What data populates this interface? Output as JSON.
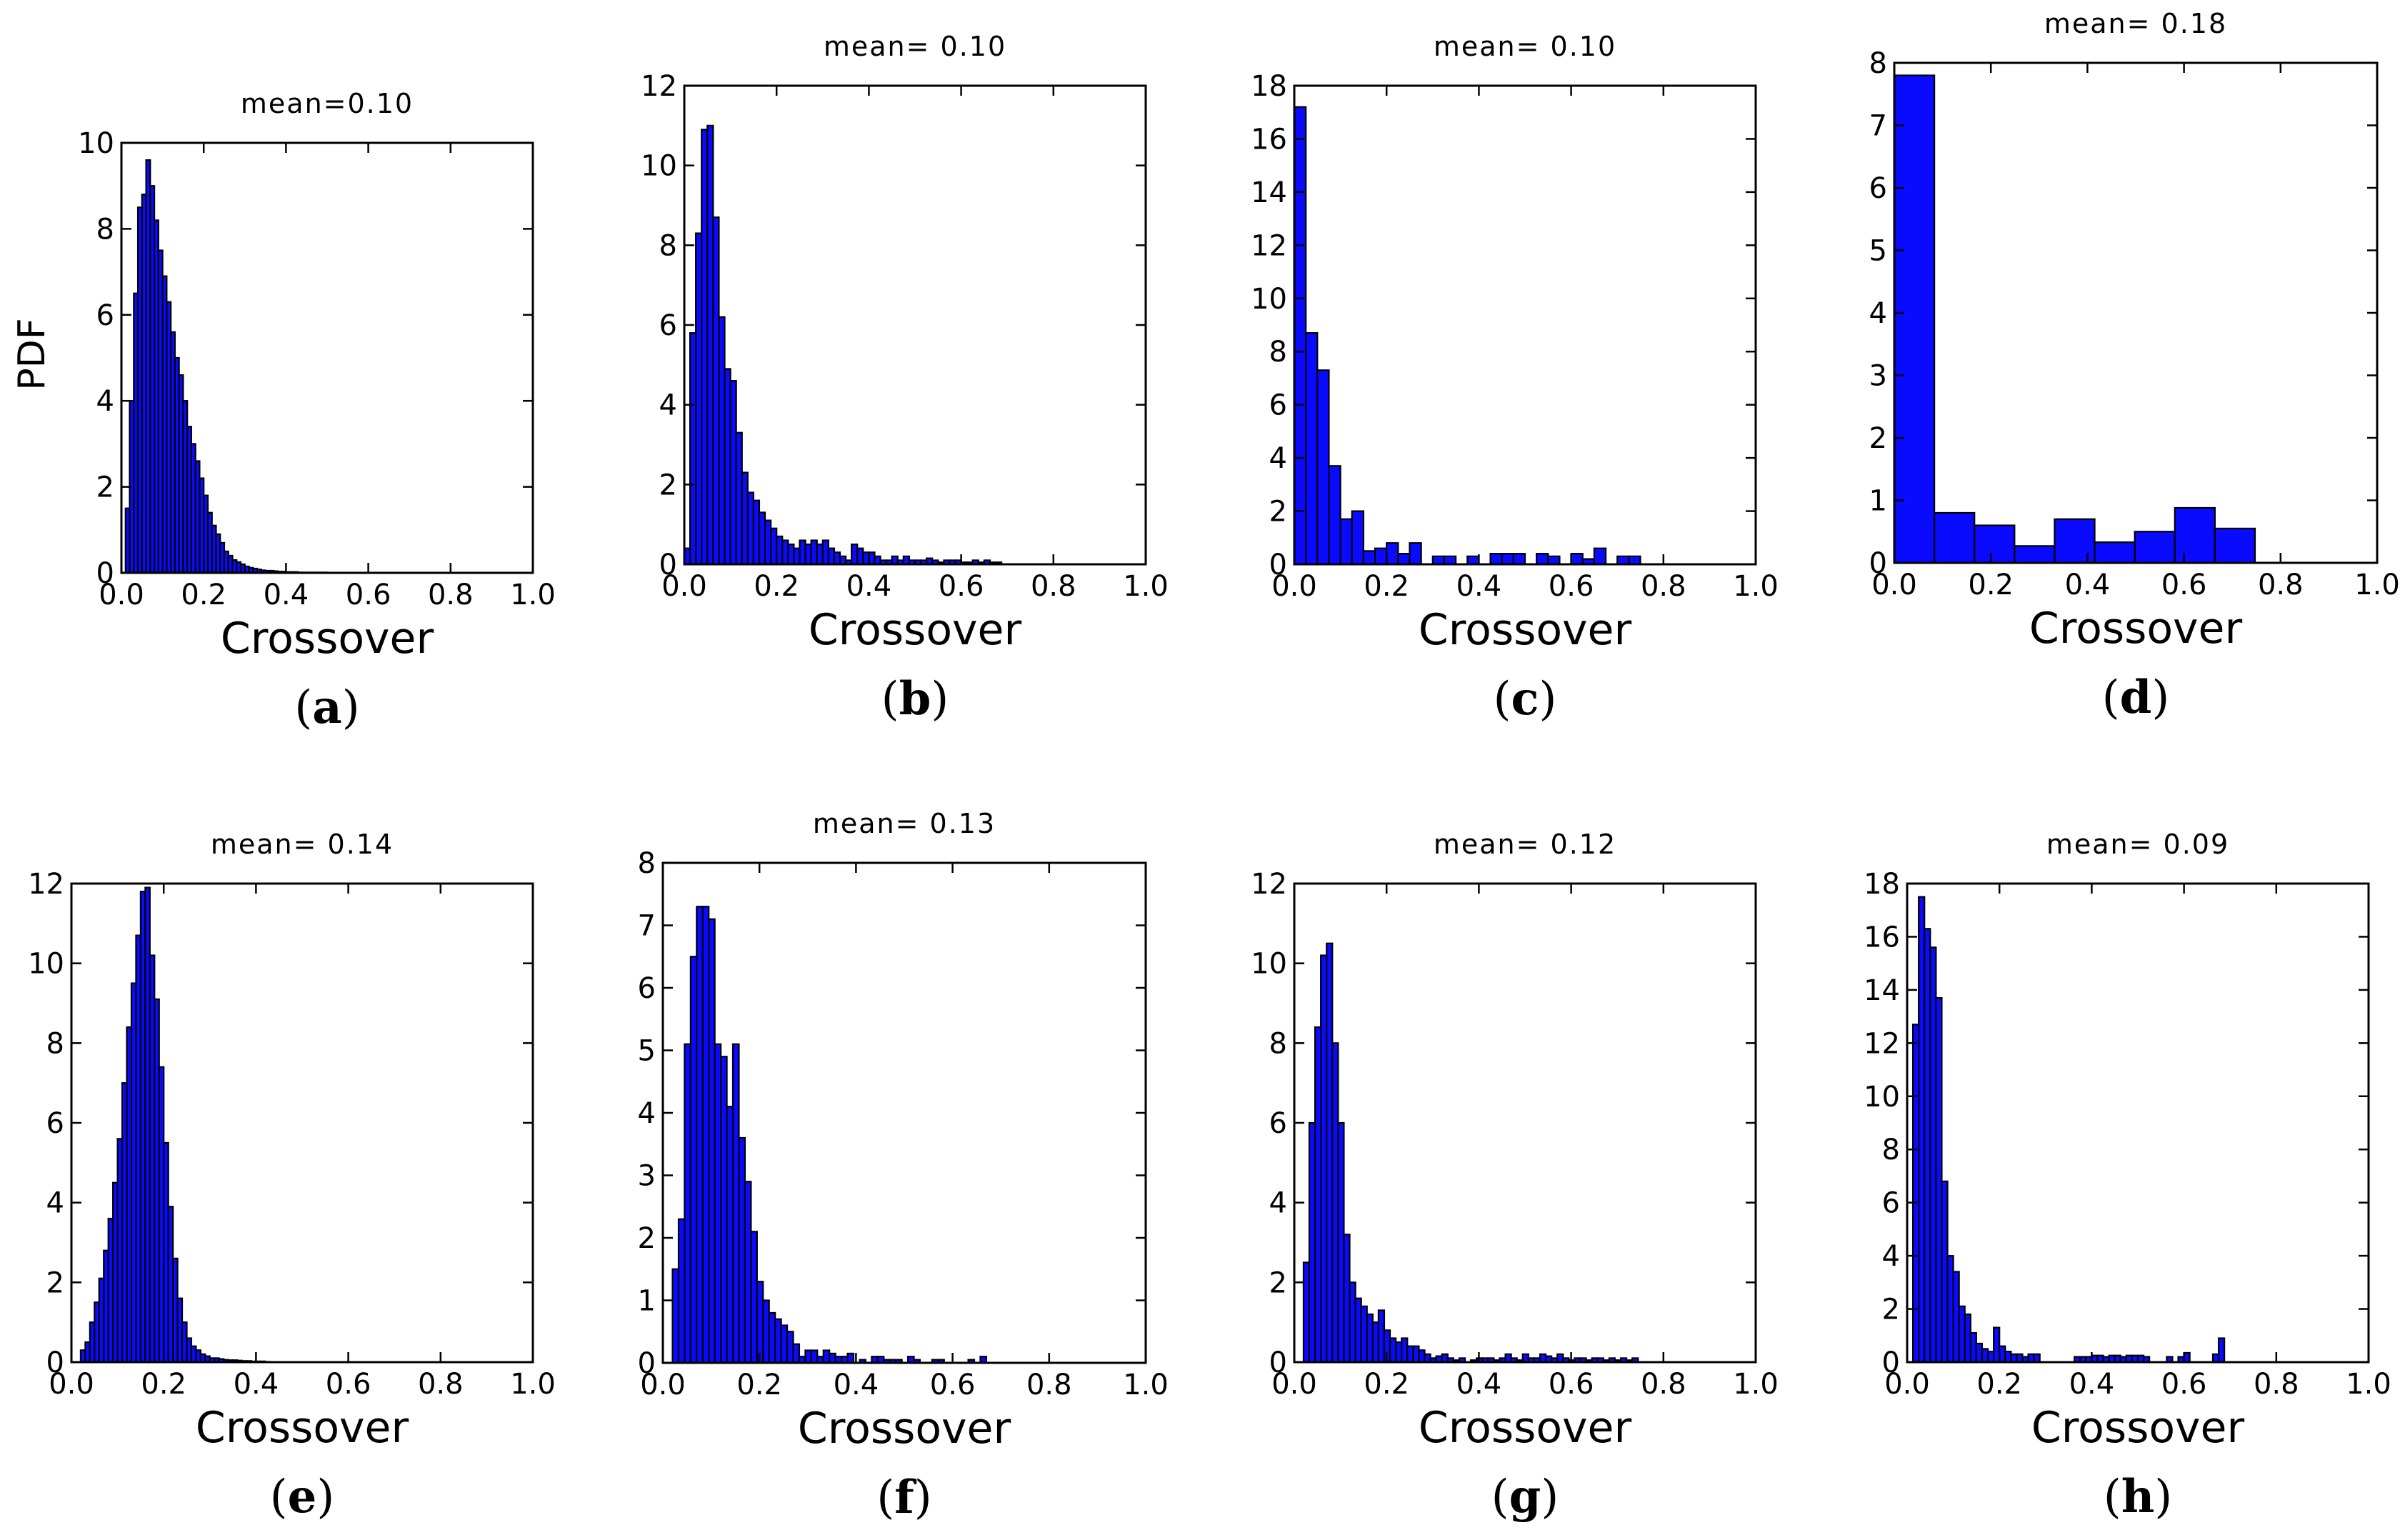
{
  "figure": {
    "ylabel_shared": "PDF"
  },
  "colors": {
    "bar_fill": "#0a0aff",
    "bar_edge": "#000000",
    "axis": "#000000",
    "background": "#ffffff"
  },
  "chart_data": [
    {
      "type": "bar",
      "id": "a",
      "label": "a",
      "title": "mean=0.10",
      "xlabel": "Crossover",
      "ylabel": "PDF",
      "xlim": [
        0.0,
        1.0
      ],
      "ylim": [
        0,
        10
      ],
      "xticks": [
        "0.0",
        "0.2",
        "0.4",
        "0.6",
        "0.8",
        "1.0"
      ],
      "yticks": [
        "0",
        "2",
        "4",
        "6",
        "8",
        "10"
      ],
      "bin_start": 0.0,
      "bin_width": 0.01,
      "values": [
        0,
        1.5,
        4.0,
        6.5,
        8.5,
        8.8,
        9.6,
        9.0,
        8.2,
        7.5,
        6.9,
        6.3,
        5.6,
        5.0,
        4.6,
        4.0,
        3.4,
        3.0,
        2.6,
        2.2,
        1.8,
        1.4,
        1.1,
        0.9,
        0.7,
        0.5,
        0.4,
        0.3,
        0.25,
        0.2,
        0.15,
        0.12,
        0.1,
        0.08,
        0.06,
        0.05,
        0.05,
        0.04,
        0.03,
        0.03,
        0.02,
        0.02,
        0.02,
        0.01,
        0.01,
        0.01,
        0.01,
        0.01,
        0.01,
        0.01
      ]
    },
    {
      "type": "bar",
      "id": "b",
      "label": "b",
      "title": "mean= 0.10",
      "xlabel": "Crossover",
      "ylabel": "",
      "xlim": [
        0.0,
        1.0
      ],
      "ylim": [
        0,
        12
      ],
      "xticks": [
        "0.0",
        "0.2",
        "0.4",
        "0.6",
        "0.8",
        "1.0"
      ],
      "yticks": [
        "0",
        "2",
        "4",
        "6",
        "8",
        "10",
        "12"
      ],
      "bin_start": 0.0,
      "bin_width": 0.0125,
      "values": [
        0.4,
        5.8,
        8.3,
        10.9,
        11.0,
        8.7,
        6.2,
        4.9,
        4.6,
        3.3,
        2.3,
        1.8,
        1.6,
        1.3,
        1.1,
        0.9,
        0.7,
        0.6,
        0.5,
        0.4,
        0.6,
        0.5,
        0.6,
        0.5,
        0.6,
        0.4,
        0.3,
        0.2,
        0.1,
        0.5,
        0.4,
        0.3,
        0.3,
        0.2,
        0.1,
        0.1,
        0.2,
        0.1,
        0.2,
        0.1,
        0.1,
        0.1,
        0.15,
        0.1,
        0.05,
        0.1,
        0.1,
        0.1,
        0.05,
        0.05,
        0.1,
        0.05,
        0.1,
        0.05,
        0.05
      ]
    },
    {
      "type": "bar",
      "id": "c",
      "label": "c",
      "title": "mean= 0.10",
      "xlabel": "Crossover",
      "ylabel": "",
      "xlim": [
        0.0,
        1.0
      ],
      "ylim": [
        0,
        18
      ],
      "xticks": [
        "0.0",
        "0.2",
        "0.4",
        "0.6",
        "0.8",
        "1.0"
      ],
      "yticks": [
        "0",
        "2",
        "4",
        "6",
        "8",
        "10",
        "12",
        "14",
        "16",
        "18"
      ],
      "bin_start": 0.0,
      "bin_width": 0.025,
      "values": [
        17.2,
        8.7,
        7.3,
        3.7,
        1.7,
        2.0,
        0.5,
        0.6,
        0.8,
        0.4,
        0.8,
        0,
        0.3,
        0.3,
        0,
        0.3,
        0,
        0.4,
        0.4,
        0.4,
        0,
        0.4,
        0.3,
        0,
        0.4,
        0.2,
        0.6,
        0,
        0.3,
        0.3
      ]
    },
    {
      "type": "bar",
      "id": "d",
      "label": "d",
      "title": "mean= 0.18",
      "xlabel": "Crossover",
      "ylabel": "",
      "xlim": [
        0.0,
        1.0
      ],
      "ylim": [
        0,
        8
      ],
      "xticks": [
        "0.0",
        "0.2",
        "0.4",
        "0.6",
        "0.8",
        "1.0"
      ],
      "yticks": [
        "0",
        "1",
        "2",
        "3",
        "4",
        "5",
        "6",
        "7",
        "8"
      ],
      "bin_start": 0.0,
      "bin_width": 0.083,
      "values": [
        7.8,
        0.8,
        0.6,
        0.27,
        0.7,
        0.33,
        0.5,
        0.88,
        0.55
      ]
    },
    {
      "type": "bar",
      "id": "e",
      "label": "e",
      "title": "mean= 0.14",
      "xlabel": "Crossover",
      "ylabel": "",
      "xlim": [
        0.0,
        1.0
      ],
      "ylim": [
        0,
        12
      ],
      "xticks": [
        "0.0",
        "0.2",
        "0.4",
        "0.6",
        "0.8",
        "1.0"
      ],
      "yticks": [
        "0",
        "2",
        "4",
        "6",
        "8",
        "10",
        "12"
      ],
      "bin_start": 0.02,
      "bin_width": 0.01,
      "values": [
        0.3,
        0.5,
        1.0,
        1.5,
        2.1,
        2.8,
        3.6,
        4.5,
        5.6,
        7.0,
        8.4,
        9.5,
        10.7,
        11.8,
        11.9,
        10.2,
        9.1,
        7.4,
        5.5,
        3.9,
        2.6,
        1.6,
        1.0,
        0.6,
        0.4,
        0.3,
        0.2,
        0.15,
        0.1,
        0.1,
        0.08,
        0.06,
        0.05,
        0.05,
        0.04,
        0.03,
        0.03,
        0.02,
        0.02,
        0.02,
        0.01
      ]
    },
    {
      "type": "bar",
      "id": "f",
      "label": "f",
      "title": "mean= 0.13",
      "xlabel": "Crossover",
      "ylabel": "",
      "xlim": [
        0.0,
        1.0
      ],
      "ylim": [
        0,
        8
      ],
      "xticks": [
        "0.0",
        "0.2",
        "0.4",
        "0.6",
        "0.8",
        "1.0"
      ],
      "yticks": [
        "0",
        "1",
        "2",
        "3",
        "4",
        "5",
        "6",
        "7",
        "8"
      ],
      "bin_start": 0.02,
      "bin_width": 0.0125,
      "values": [
        1.5,
        2.3,
        5.1,
        6.5,
        7.3,
        7.3,
        7.1,
        5.1,
        4.9,
        4.1,
        5.1,
        3.6,
        2.9,
        2.1,
        1.3,
        1.0,
        0.8,
        0.7,
        0.6,
        0.5,
        0.3,
        0.1,
        0.2,
        0.2,
        0.1,
        0.2,
        0.15,
        0.1,
        0.1,
        0.15,
        0,
        0.05,
        0,
        0.1,
        0.1,
        0.05,
        0.05,
        0.05,
        0,
        0.1,
        0.05,
        0,
        0,
        0.05,
        0.05,
        0,
        0,
        0,
        0,
        0.05,
        0,
        0.1
      ]
    },
    {
      "type": "bar",
      "id": "g",
      "label": "g",
      "title": "mean= 0.12",
      "xlabel": "Crossover",
      "ylabel": "",
      "xlim": [
        0.0,
        1.0
      ],
      "ylim": [
        0,
        12
      ],
      "xticks": [
        "0.0",
        "0.2",
        "0.4",
        "0.6",
        "0.8",
        "1.0"
      ],
      "yticks": [
        "0",
        "2",
        "4",
        "6",
        "8",
        "10",
        "12"
      ],
      "bin_start": 0.02,
      "bin_width": 0.0125,
      "values": [
        2.5,
        6.0,
        8.4,
        10.2,
        10.5,
        8.0,
        6.0,
        3.2,
        2.0,
        1.6,
        1.4,
        1.2,
        1.0,
        1.3,
        0.8,
        0.6,
        0.5,
        0.6,
        0.4,
        0.4,
        0.3,
        0.2,
        0.1,
        0.15,
        0.2,
        0.1,
        0.05,
        0.1,
        0,
        0.05,
        0.1,
        0.1,
        0.1,
        0.05,
        0.1,
        0.2,
        0.1,
        0.05,
        0.2,
        0.1,
        0.1,
        0.2,
        0.15,
        0.1,
        0.2,
        0.1,
        0.05,
        0.1,
        0.1,
        0.05,
        0.1,
        0.1,
        0.05,
        0.1,
        0.05,
        0.1,
        0.05,
        0.1
      ]
    },
    {
      "type": "bar",
      "id": "h",
      "label": "h",
      "title": "mean= 0.09",
      "xlabel": "Crossover",
      "ylabel": "",
      "xlim": [
        0.0,
        1.0
      ],
      "ylim": [
        0,
        18
      ],
      "xticks": [
        "0.0",
        "0.2",
        "0.4",
        "0.6",
        "0.8",
        "1.0"
      ],
      "yticks": [
        "0",
        "2",
        "4",
        "6",
        "8",
        "10",
        "12",
        "14",
        "16",
        "18"
      ],
      "bin_start": 0.0,
      "bin_width": 0.0125,
      "values": [
        0,
        12.7,
        17.5,
        16.3,
        15.6,
        13.7,
        6.8,
        4.0,
        3.4,
        2.1,
        1.8,
        1.1,
        0.7,
        0.5,
        0.4,
        1.3,
        0.6,
        0.4,
        0.3,
        0.3,
        0.2,
        0.3,
        0.3,
        0,
        0,
        0,
        0,
        0,
        0,
        0.2,
        0.2,
        0.2,
        0.25,
        0.25,
        0.2,
        0.25,
        0.25,
        0.2,
        0.25,
        0.25,
        0.25,
        0.2,
        0,
        0,
        0,
        0.2,
        0,
        0.2,
        0.35,
        0,
        0,
        0,
        0,
        0.3,
        0.9
      ]
    }
  ]
}
